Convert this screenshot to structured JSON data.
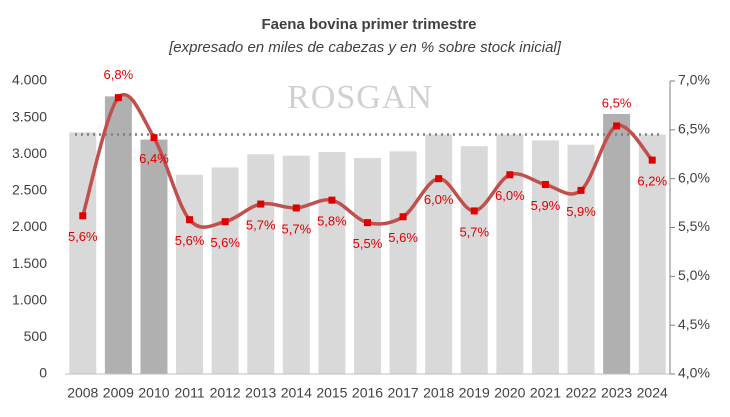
{
  "chart_data": {
    "type": "combo",
    "title": "Faena bovina primer trimestre",
    "subtitle": "[expresado en miles de cabezas y en % sobre stock inicial]",
    "watermark": "ROSGAN",
    "categories": [
      "2008",
      "2009",
      "2010",
      "2011",
      "2012",
      "2013",
      "2014",
      "2015",
      "2016",
      "2017",
      "2018",
      "2019",
      "2020",
      "2021",
      "2022",
      "2023",
      "2024"
    ],
    "series": [
      {
        "type": "bar",
        "values": [
          3300,
          3790,
          3200,
          2720,
          2820,
          3000,
          2980,
          3030,
          2950,
          3040,
          3270,
          3110,
          3270,
          3190,
          3130,
          3550,
          3270
        ],
        "colors": [
          "#d9d9d9",
          "#b0b0b0",
          "#b0b0b0",
          "#d9d9d9",
          "#d9d9d9",
          "#d9d9d9",
          "#d9d9d9",
          "#d9d9d9",
          "#d9d9d9",
          "#d9d9d9",
          "#d9d9d9",
          "#d9d9d9",
          "#d9d9d9",
          "#d9d9d9",
          "#d9d9d9",
          "#b0b0b0",
          "#d9d9d9"
        ]
      },
      {
        "type": "line",
        "axis": "y2",
        "color": "#c0504d",
        "marker_color": "#e00000",
        "values": [
          5.62,
          6.83,
          6.42,
          5.58,
          5.56,
          5.74,
          5.7,
          5.78,
          5.55,
          5.61,
          6.0,
          5.67,
          6.04,
          5.94,
          5.88,
          6.54,
          6.19
        ],
        "value_labels": [
          "5,6%",
          "6,8%",
          "6,4%",
          "5,6%",
          "5,6%",
          "5,7%",
          "5,7%",
          "5,8%",
          "5,5%",
          "5,6%",
          "6,0%",
          "5,7%",
          "6,0%",
          "5,9%",
          "5,9%",
          "6,5%",
          "6,2%"
        ]
      }
    ],
    "reference_line": 3270,
    "ylim": [
      0,
      4000
    ],
    "yticks": [
      0,
      500,
      {
        "value": 1000,
        "label": "1.000"
      },
      {
        "value": 1500,
        "label": "1.500"
      },
      {
        "value": 2000,
        "label": "2.000"
      },
      {
        "value": 2500,
        "label": "2.500"
      },
      {
        "value": 3000,
        "label": "3.000"
      },
      {
        "value": 3500,
        "label": "3.500"
      },
      {
        "value": 4000,
        "label": "4.000"
      }
    ],
    "y2lim": [
      4.0,
      7.0
    ],
    "y2ticks": [
      {
        "value": 4.0,
        "label": "4,0%"
      },
      {
        "value": 4.5,
        "label": "4,5%"
      },
      {
        "value": 5.0,
        "label": "5,0%"
      },
      {
        "value": 5.5,
        "label": "5,5%"
      },
      {
        "value": 6.0,
        "label": "6,0%"
      },
      {
        "value": 6.5,
        "label": "6,5%"
      },
      {
        "value": 7.0,
        "label": "7,0%"
      }
    ]
  }
}
